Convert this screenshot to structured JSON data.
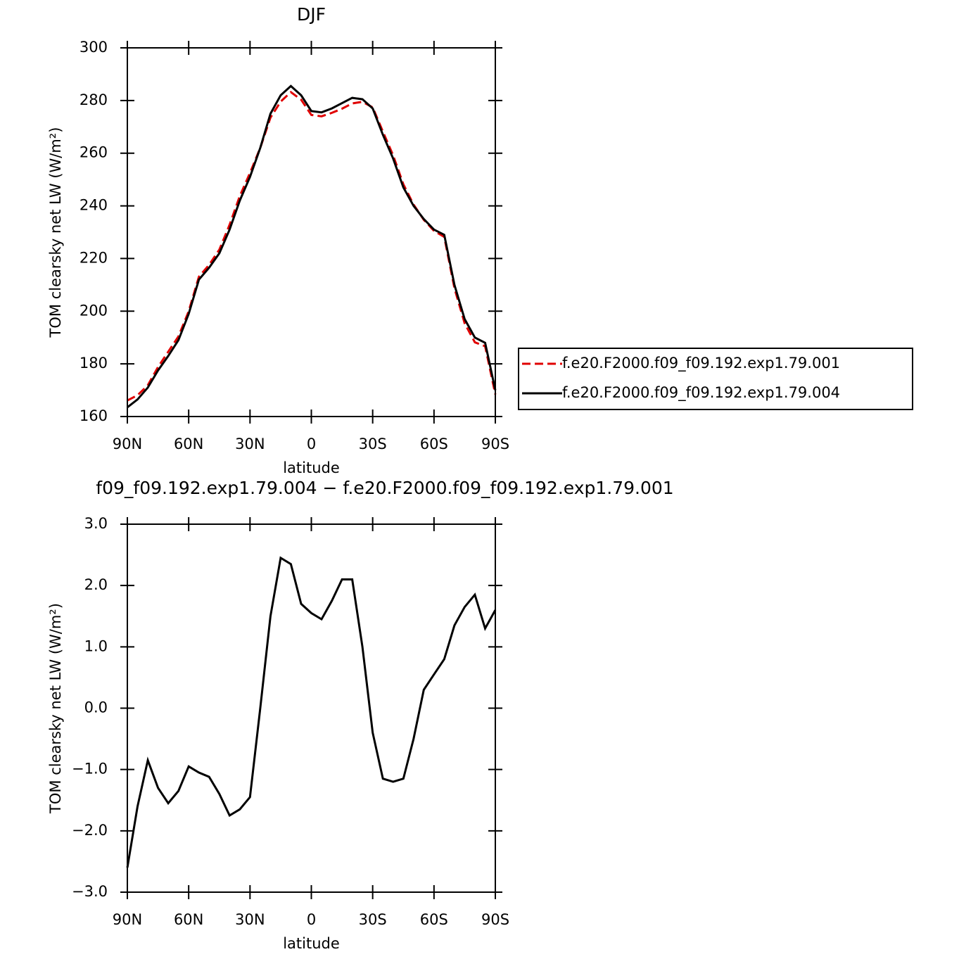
{
  "chart_data": [
    {
      "type": "line",
      "title": "DJF",
      "xlabel": "latitude",
      "ylabel": "TOM clearsky net LW (W/m²)",
      "x": [
        90,
        85,
        80,
        75,
        70,
        65,
        60,
        55,
        50,
        45,
        40,
        35,
        30,
        25,
        20,
        15,
        10,
        5,
        0,
        -5,
        -10,
        -15,
        -20,
        -25,
        -30,
        -35,
        -40,
        -45,
        -50,
        -55,
        -60,
        -65,
        -70,
        -75,
        -80,
        -85,
        -90
      ],
      "xlim": [
        90,
        -90
      ],
      "xticks": [
        {
          "value": 90,
          "label": "90N"
        },
        {
          "value": 60,
          "label": "60N"
        },
        {
          "value": 30,
          "label": "30N"
        },
        0,
        {
          "value": -30,
          "label": "30S"
        },
        {
          "value": -60,
          "label": "60S"
        },
        {
          "value": -90,
          "label": "90S"
        }
      ],
      "ylim": [
        160,
        300
      ],
      "yticks": [
        160,
        180,
        200,
        220,
        240,
        260,
        280,
        300
      ],
      "legend": "right",
      "series": [
        {
          "name": "f.e20.F2000.f09_f09.192.exp1.79.001",
          "color": "#e00000",
          "line_style": "dashed",
          "values": [
            166.1,
            168.1,
            171.9,
            178.8,
            184.6,
            190.4,
            200,
            213.1,
            217.6,
            223.4,
            232.8,
            243.7,
            252.5,
            262,
            273.5,
            279.6,
            283.2,
            280.3,
            274.5,
            274,
            275.3,
            276.9,
            278.9,
            279.5,
            277.4,
            268.2,
            259.2,
            248.2,
            240.5,
            234.7,
            230.5,
            228.2,
            208.7,
            195.4,
            188.2,
            186.7,
            168.4
          ]
        },
        {
          "name": "f.e20.F2000.f09_f09.192.exp1.79.004",
          "color": "#000000",
          "line_style": "solid",
          "values": [
            163.5,
            166.5,
            171,
            177.5,
            183,
            189,
            199,
            212,
            216.5,
            222,
            231,
            242,
            251,
            262,
            275,
            282,
            285.5,
            282,
            276,
            275.5,
            277,
            279,
            281,
            280.5,
            277,
            267,
            258,
            247,
            240,
            235,
            231,
            229,
            210,
            197,
            190,
            188,
            170
          ]
        }
      ]
    },
    {
      "type": "line",
      "title": "f09_f09.192.exp1.79.004 − f.e20.F2000.f09_f09.192.exp1.79.001",
      "xlabel": "latitude",
      "ylabel": "TOM clearsky net LW (W/m²)",
      "x": [
        90,
        85,
        80,
        75,
        70,
        65,
        60,
        55,
        50,
        45,
        40,
        35,
        30,
        25,
        20,
        15,
        10,
        5,
        0,
        -5,
        -10,
        -15,
        -20,
        -25,
        -30,
        -35,
        -40,
        -45,
        -50,
        -55,
        -60,
        -65,
        -70,
        -75,
        -80,
        -85,
        -90
      ],
      "xlim": [
        90,
        -90
      ],
      "xticks": [
        {
          "value": 90,
          "label": "90N"
        },
        {
          "value": 60,
          "label": "60N"
        },
        {
          "value": 30,
          "label": "30N"
        },
        0,
        {
          "value": -30,
          "label": "30S"
        },
        {
          "value": -60,
          "label": "60S"
        },
        {
          "value": -90,
          "label": "90S"
        }
      ],
      "ylim": [
        -3,
        3
      ],
      "yticks": [
        {
          "value": -3,
          "label": "−3.0"
        },
        {
          "value": -2,
          "label": "−2.0"
        },
        {
          "value": -1,
          "label": "−1.0"
        },
        {
          "value": 0,
          "label": "0.0"
        },
        {
          "value": 1,
          "label": "1.0"
        },
        {
          "value": 2,
          "label": "2.0"
        },
        {
          "value": 3,
          "label": "3.0"
        }
      ],
      "series": [
        {
          "color": "#000000",
          "line_style": "solid",
          "values": [
            -2.6,
            -1.6,
            -0.85,
            -1.3,
            -1.55,
            -1.35,
            -0.95,
            -1.05,
            -1.12,
            -1.4,
            -1.75,
            -1.65,
            -1.45,
            0,
            1.5,
            2.45,
            2.35,
            1.7,
            1.55,
            1.45,
            1.75,
            2.1,
            2.1,
            1,
            -0.4,
            -1.15,
            -1.2,
            -1.15,
            -0.5,
            0.3,
            0.55,
            0.8,
            1.35,
            1.65,
            1.85,
            1.3,
            1.6
          ]
        }
      ]
    }
  ]
}
